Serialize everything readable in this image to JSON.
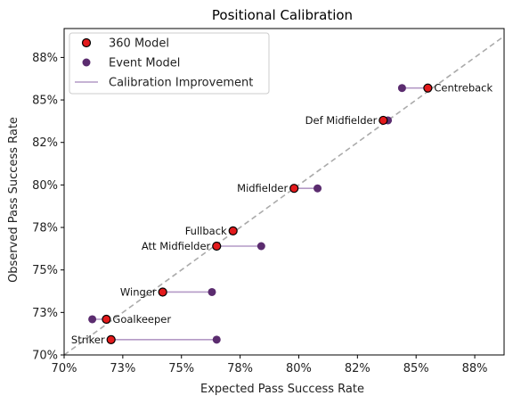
{
  "chart_data": {
    "type": "scatter",
    "title": "Positional Calibration",
    "xlabel": "Expected Pass Success Rate",
    "ylabel": "Observed Pass Success Rate",
    "xlim": [
      0.7,
      0.8875
    ],
    "ylim": [
      0.7,
      0.892
    ],
    "x_ticks": [
      0.7,
      0.725,
      0.75,
      0.775,
      0.8,
      0.825,
      0.85,
      0.875
    ],
    "x_tick_labels": [
      "70%",
      "73%",
      "75%",
      "78%",
      "80%",
      "82%",
      "85%",
      "88%"
    ],
    "y_ticks": [
      0.7,
      0.725,
      0.75,
      0.775,
      0.8,
      0.825,
      0.85,
      0.875
    ],
    "y_tick_labels": [
      "70%",
      "73%",
      "75%",
      "78%",
      "80%",
      "82%",
      "85%",
      "88%"
    ],
    "grid": false,
    "legend_position": "top-left",
    "legend": [
      {
        "key": "model360",
        "label": "360 Model"
      },
      {
        "key": "event",
        "label": "Event Model"
      },
      {
        "key": "improvement",
        "label": "Calibration Improvement"
      }
    ],
    "colors": {
      "model360_fill": "#e31a1c",
      "model360_edge": "#000000",
      "event_fill": "#5b2c6f",
      "improvement_line": "#b49ac6",
      "diagonal": "#aaaaaa"
    },
    "points": [
      {
        "label": "Centreback",
        "model360": [
          0.855,
          0.857
        ],
        "event": [
          0.844,
          0.857
        ],
        "label_side": "right"
      },
      {
        "label": "Def Midfielder",
        "model360": [
          0.836,
          0.838
        ],
        "event": [
          0.838,
          0.838
        ],
        "label_side": "left"
      },
      {
        "label": "Midfielder",
        "model360": [
          0.798,
          0.798
        ],
        "event": [
          0.808,
          0.798
        ],
        "label_side": "left"
      },
      {
        "label": "Fullback",
        "model360": [
          0.772,
          0.773
        ],
        "event": [
          0.772,
          0.773
        ],
        "label_side": "left"
      },
      {
        "label": "Att Midfielder",
        "model360": [
          0.765,
          0.764
        ],
        "event": [
          0.784,
          0.764
        ],
        "label_side": "left"
      },
      {
        "label": "Winger",
        "model360": [
          0.742,
          0.737
        ],
        "event": [
          0.763,
          0.737
        ],
        "label_side": "left"
      },
      {
        "label": "Goalkeeper",
        "model360": [
          0.718,
          0.721
        ],
        "event": [
          0.712,
          0.721
        ],
        "label_side": "right"
      },
      {
        "label": "Striker",
        "model360": [
          0.72,
          0.709
        ],
        "event": [
          0.765,
          0.709
        ],
        "label_side": "left"
      }
    ]
  }
}
